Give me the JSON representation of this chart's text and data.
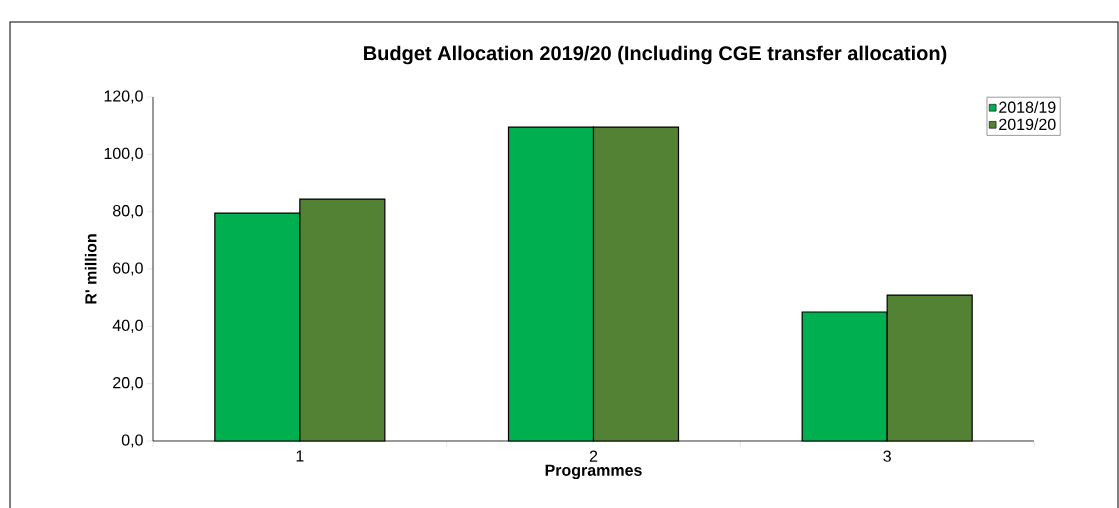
{
  "chart_data": {
    "type": "bar",
    "title": "Budget Allocation 2019/20 (Including CGE transfer allocation)",
    "xlabel": "Programmes",
    "ylabel": "R' million",
    "categories": [
      "1",
      "2",
      "3"
    ],
    "series": [
      {
        "name": "2018/19",
        "color": "#00b050",
        "values": [
          79.5,
          109.5,
          45.0
        ]
      },
      {
        "name": "2019/20",
        "color": "#548235",
        "values": [
          84.4,
          109.5,
          50.9
        ]
      }
    ],
    "ylim": [
      0,
      120
    ],
    "yticks": [
      {
        "value": 0,
        "label": "0,0"
      },
      {
        "value": 20,
        "label": "20,0"
      },
      {
        "value": 40,
        "label": "40,0"
      },
      {
        "value": 60,
        "label": "60,0"
      },
      {
        "value": 80,
        "label": "80,0"
      },
      {
        "value": 100,
        "label": "100,0"
      },
      {
        "value": 120,
        "label": "120,0"
      }
    ],
    "grid": false,
    "legend": "top right"
  }
}
